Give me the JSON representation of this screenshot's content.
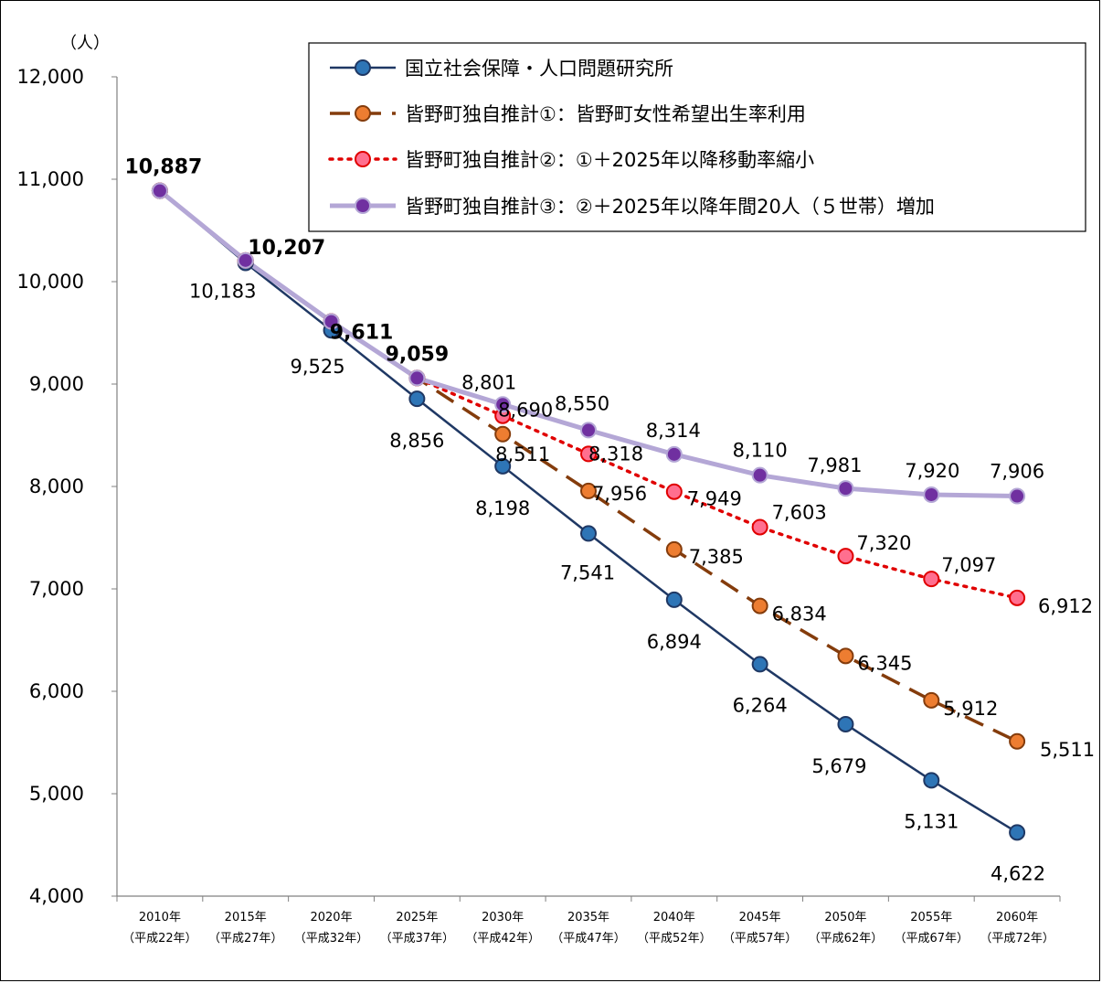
{
  "chart_data": {
    "type": "line",
    "ylabel": "（人）",
    "ylim": [
      4000,
      12000
    ],
    "yticks": [
      "4,000",
      "5,000",
      "6,000",
      "7,000",
      "8,000",
      "9,000",
      "10,000",
      "11,000",
      "12,000"
    ],
    "categories": [
      {
        "year": "2010年",
        "era": "（平成22年）"
      },
      {
        "year": "2015年",
        "era": "（平成27年）"
      },
      {
        "year": "2020年",
        "era": "（平成32年）"
      },
      {
        "year": "2025年",
        "era": "（平成37年）"
      },
      {
        "year": "2030年",
        "era": "（平成42年）"
      },
      {
        "year": "2035年",
        "era": "（平成47年）"
      },
      {
        "year": "2040年",
        "era": "（平成52年）"
      },
      {
        "year": "2045年",
        "era": "（平成57年）"
      },
      {
        "year": "2050年",
        "era": "（平成62年）"
      },
      {
        "year": "2055年",
        "era": "（平成67年）"
      },
      {
        "year": "2060年",
        "era": "（平成72年）"
      }
    ],
    "series": [
      {
        "name": "国立社会保障・人口問題研究所",
        "line_color": "#1F3864",
        "marker_color": "#2E75B6",
        "style": "solid",
        "values": [
          10887,
          10183,
          9525,
          8856,
          8198,
          7541,
          6894,
          6264,
          5679,
          5131,
          4622
        ]
      },
      {
        "name": "皆野町独自推計①：皆野町女性希望出生率利用",
        "line_color": "#843C0C",
        "marker_color": "#ED7D31",
        "style": "dashed",
        "values": [
          10887,
          10207,
          9611,
          9059,
          8511,
          7956,
          7385,
          6834,
          6345,
          5912,
          5511
        ]
      },
      {
        "name": "皆野町独自推計②：①＋2025年以降移動率縮小",
        "line_color": "#E00000",
        "marker_color": "#FF6F8F",
        "style": "dotted",
        "values": [
          10887,
          10207,
          9611,
          9059,
          8690,
          8318,
          7949,
          7603,
          7320,
          7097,
          6912
        ]
      },
      {
        "name": "皆野町独自推計③：②＋2025年以降年間20人（５世帯）増加",
        "line_color": "#B4A7D6",
        "marker_color": "#7030A0",
        "style": "solid-thick",
        "values": [
          10887,
          10207,
          9611,
          9059,
          8801,
          8550,
          8314,
          8110,
          7981,
          7920,
          7906
        ]
      }
    ],
    "data_labels": [
      {
        "text": "10,887",
        "series": 3,
        "index": 0,
        "bold": true
      },
      {
        "text": "10,207",
        "series": 3,
        "index": 1,
        "bold": true
      },
      {
        "text": "9,611",
        "series": 3,
        "index": 2,
        "bold": true
      },
      {
        "text": "9,059",
        "series": 3,
        "index": 3,
        "bold": true
      },
      {
        "text": "10,183",
        "series": 0,
        "index": 1
      },
      {
        "text": "9,525",
        "series": 0,
        "index": 2
      },
      {
        "text": "8,856",
        "series": 0,
        "index": 3
      },
      {
        "text": "8,198",
        "series": 0,
        "index": 4
      },
      {
        "text": "7,541",
        "series": 0,
        "index": 5
      },
      {
        "text": "6,894",
        "series": 0,
        "index": 6
      },
      {
        "text": "6,264",
        "series": 0,
        "index": 7
      },
      {
        "text": "5,679",
        "series": 0,
        "index": 8
      },
      {
        "text": "5,131",
        "series": 0,
        "index": 9
      },
      {
        "text": "4,622",
        "series": 0,
        "index": 10
      },
      {
        "text": "8,511",
        "series": 1,
        "index": 4
      },
      {
        "text": "7,956",
        "series": 1,
        "index": 5
      },
      {
        "text": "7,385",
        "series": 1,
        "index": 6
      },
      {
        "text": "6,834",
        "series": 1,
        "index": 7
      },
      {
        "text": "6,345",
        "series": 1,
        "index": 8
      },
      {
        "text": "5,912",
        "series": 1,
        "index": 9
      },
      {
        "text": "5,511",
        "series": 1,
        "index": 10
      },
      {
        "text": "8,690",
        "series": 2,
        "index": 4
      },
      {
        "text": "8,318",
        "series": 2,
        "index": 5
      },
      {
        "text": "7,949",
        "series": 2,
        "index": 6
      },
      {
        "text": "7,603",
        "series": 2,
        "index": 7
      },
      {
        "text": "7,320",
        "series": 2,
        "index": 8
      },
      {
        "text": "7,097",
        "series": 2,
        "index": 9
      },
      {
        "text": "6,912",
        "series": 2,
        "index": 10
      },
      {
        "text": "8,801",
        "series": 3,
        "index": 4
      },
      {
        "text": "8,550",
        "series": 3,
        "index": 5
      },
      {
        "text": "8,314",
        "series": 3,
        "index": 6
      },
      {
        "text": "8,110",
        "series": 3,
        "index": 7
      },
      {
        "text": "7,981",
        "series": 3,
        "index": 8
      },
      {
        "text": "7,920",
        "series": 3,
        "index": 9
      },
      {
        "text": "7,906",
        "series": 3,
        "index": 10
      }
    ],
    "legend_position": "top-right",
    "grid": false
  }
}
